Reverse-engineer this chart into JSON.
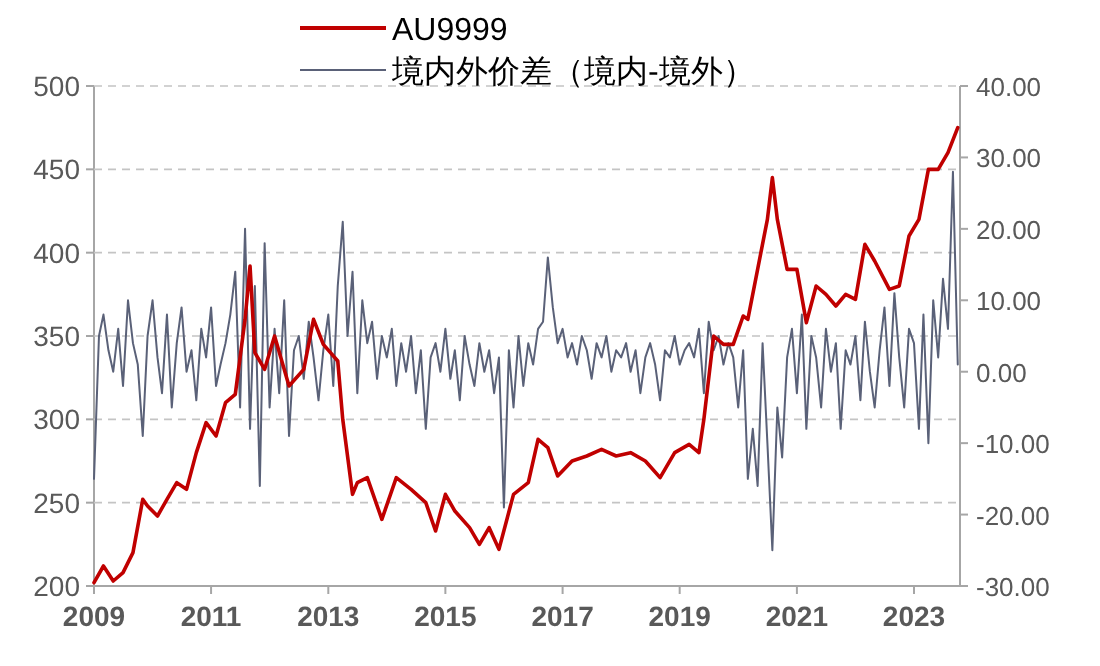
{
  "chart_data": {
    "type": "line",
    "legend": "top",
    "xlim": [
      "2009-01-01",
      "2023-10-15"
    ],
    "xticks": [
      "2009",
      "2011",
      "2013",
      "2015",
      "2017",
      "2019",
      "2021",
      "2023"
    ],
    "ylim": [
      200,
      500
    ],
    "yticks": [
      200,
      250,
      300,
      350,
      400,
      450,
      500
    ],
    "y2lim": [
      -30,
      40
    ],
    "y2ticks": [
      {
        "value": -30,
        "label": "-30.00"
      },
      {
        "value": -20,
        "label": "-20.00"
      },
      {
        "value": -10,
        "label": "-10.00"
      },
      {
        "value": 0,
        "label": "0.00"
      },
      {
        "value": 10,
        "label": "10.00"
      },
      {
        "value": 20,
        "label": "20.00"
      },
      {
        "value": 30,
        "label": "30.00"
      },
      {
        "value": 40,
        "label": "40.00"
      }
    ],
    "grid": "y",
    "line_style": "solid",
    "marker": "none",
    "series": [
      {
        "name": "境内外价差（境内-境外）",
        "color": "#5a6178",
        "axis": "y2",
        "x": [
          "2009-01",
          "2009-02",
          "2009-03",
          "2009-04",
          "2009-05",
          "2009-06",
          "2009-07",
          "2009-08",
          "2009-09",
          "2009-10",
          "2009-11",
          "2009-12",
          "2010-01",
          "2010-02",
          "2010-03",
          "2010-04",
          "2010-05",
          "2010-06",
          "2010-07",
          "2010-08",
          "2010-09",
          "2010-10",
          "2010-11",
          "2010-12",
          "2011-01",
          "2011-02",
          "2011-03",
          "2011-04",
          "2011-05",
          "2011-06",
          "2011-07",
          "2011-08",
          "2011-09",
          "2011-10",
          "2011-11",
          "2011-12",
          "2012-01",
          "2012-02",
          "2012-03",
          "2012-04",
          "2012-05",
          "2012-06",
          "2012-07",
          "2012-08",
          "2012-09",
          "2012-10",
          "2012-11",
          "2012-12",
          "2013-01",
          "2013-02",
          "2013-03",
          "2013-04",
          "2013-05",
          "2013-06",
          "2013-07",
          "2013-08",
          "2013-09",
          "2013-10",
          "2013-11",
          "2013-12",
          "2014-01",
          "2014-02",
          "2014-03",
          "2014-04",
          "2014-05",
          "2014-06",
          "2014-07",
          "2014-08",
          "2014-09",
          "2014-10",
          "2014-11",
          "2014-12",
          "2015-01",
          "2015-02",
          "2015-03",
          "2015-04",
          "2015-05",
          "2015-06",
          "2015-07",
          "2015-08",
          "2015-09",
          "2015-10",
          "2015-11",
          "2015-12",
          "2016-01",
          "2016-02",
          "2016-03",
          "2016-04",
          "2016-05",
          "2016-06",
          "2016-07",
          "2016-08",
          "2016-09",
          "2016-10",
          "2016-11",
          "2016-12",
          "2017-01",
          "2017-02",
          "2017-03",
          "2017-04",
          "2017-05",
          "2017-06",
          "2017-07",
          "2017-08",
          "2017-09",
          "2017-10",
          "2017-11",
          "2017-12",
          "2018-01",
          "2018-02",
          "2018-03",
          "2018-04",
          "2018-05",
          "2018-06",
          "2018-07",
          "2018-08",
          "2018-09",
          "2018-10",
          "2018-11",
          "2018-12",
          "2019-01",
          "2019-02",
          "2019-03",
          "2019-04",
          "2019-05",
          "2019-06",
          "2019-07",
          "2019-08",
          "2019-09",
          "2019-10",
          "2019-11",
          "2019-12",
          "2020-01",
          "2020-02",
          "2020-03",
          "2020-04",
          "2020-05",
          "2020-06",
          "2020-07",
          "2020-08",
          "2020-09",
          "2020-10",
          "2020-11",
          "2020-12",
          "2021-01",
          "2021-02",
          "2021-03",
          "2021-04",
          "2021-05",
          "2021-06",
          "2021-07",
          "2021-08",
          "2021-09",
          "2021-10",
          "2021-11",
          "2021-12",
          "2022-01",
          "2022-02",
          "2022-03",
          "2022-04",
          "2022-05",
          "2022-06",
          "2022-07",
          "2022-08",
          "2022-09",
          "2022-10",
          "2022-11",
          "2022-12",
          "2023-01",
          "2023-02",
          "2023-03",
          "2023-04",
          "2023-05",
          "2023-06",
          "2023-07",
          "2023-08",
          "2023-09",
          "2023-10"
        ],
        "values": [
          -15,
          5,
          8,
          3,
          0,
          6,
          -2,
          10,
          4,
          1,
          -9,
          5,
          10,
          2,
          -3,
          8,
          -5,
          4,
          9,
          0,
          3,
          -4,
          6,
          2,
          9,
          -2,
          1,
          4,
          8,
          14,
          -5,
          20,
          -8,
          12,
          -16,
          18,
          -5,
          6,
          -3,
          10,
          -9,
          3,
          5,
          -1,
          7,
          2,
          -4,
          3,
          8,
          -2,
          12,
          21,
          5,
          14,
          -3,
          10,
          4,
          7,
          -1,
          5,
          2,
          6,
          -2,
          4,
          0,
          5,
          -3,
          3,
          -8,
          2,
          4,
          0,
          6,
          -1,
          3,
          -4,
          5,
          1,
          -2,
          4,
          0,
          3,
          -3,
          2,
          -19,
          3,
          -5,
          5,
          -2,
          4,
          1,
          6,
          7,
          16,
          9,
          4,
          6,
          2,
          4,
          1,
          5,
          3,
          -1,
          4,
          2,
          5,
          0,
          3,
          2,
          4,
          0,
          3,
          -3,
          2,
          4,
          1,
          -4,
          3,
          2,
          5,
          1,
          3,
          4,
          2,
          6,
          -3,
          7,
          3,
          5,
          1,
          4,
          2,
          -5,
          3,
          -15,
          -8,
          -16,
          4,
          -10,
          -25,
          -5,
          -12,
          2,
          6,
          -3,
          8,
          -8,
          5,
          2,
          -5,
          6,
          0,
          4,
          -8,
          3,
          1,
          5,
          -4,
          7,
          0,
          -5,
          3,
          9,
          -2,
          11,
          2,
          -5,
          6,
          4,
          -8,
          8,
          -10,
          10,
          2,
          13,
          6,
          28,
          1
        ]
      },
      {
        "name": "AU9999",
        "color": "#c00000",
        "x": [
          "2009-01",
          "2009-03",
          "2009-05",
          "2009-07",
          "2009-09",
          "2009-11",
          "2009-12",
          "2010-02",
          "2010-04",
          "2010-06",
          "2010-08",
          "2010-10",
          "2010-12",
          "2011-02",
          "2011-04",
          "2011-06",
          "2011-08",
          "2011-09",
          "2011-10",
          "2011-12",
          "2012-02",
          "2012-05",
          "2012-08",
          "2012-10",
          "2012-12",
          "2013-03",
          "2013-04",
          "2013-06",
          "2013-07",
          "2013-09",
          "2013-12",
          "2014-03",
          "2014-06",
          "2014-09",
          "2014-11",
          "2015-01",
          "2015-03",
          "2015-06",
          "2015-08",
          "2015-10",
          "2015-12",
          "2016-03",
          "2016-06",
          "2016-08",
          "2016-10",
          "2016-12",
          "2017-03",
          "2017-06",
          "2017-09",
          "2017-12",
          "2018-03",
          "2018-06",
          "2018-09",
          "2018-12",
          "2019-03",
          "2019-05",
          "2019-06",
          "2019-08",
          "2019-10",
          "2019-12",
          "2020-02",
          "2020-03",
          "2020-05",
          "2020-07",
          "2020-08",
          "2020-09",
          "2020-11",
          "2021-01",
          "2021-03",
          "2021-05",
          "2021-07",
          "2021-09",
          "2021-11",
          "2022-01",
          "2022-03",
          "2022-05",
          "2022-08",
          "2022-10",
          "2022-12",
          "2023-02",
          "2023-04",
          "2023-06",
          "2023-08",
          "2023-10"
        ],
        "values": [
          202,
          212,
          203,
          208,
          220,
          252,
          248,
          242,
          252,
          262,
          258,
          280,
          298,
          290,
          310,
          315,
          360,
          392,
          340,
          330,
          350,
          320,
          330,
          360,
          345,
          335,
          300,
          255,
          262,
          265,
          240,
          265,
          258,
          250,
          233,
          255,
          245,
          235,
          225,
          235,
          222,
          255,
          262,
          288,
          283,
          266,
          275,
          278,
          282,
          278,
          280,
          275,
          265,
          280,
          285,
          280,
          300,
          350,
          345,
          345,
          362,
          360,
          390,
          420,
          445,
          420,
          390,
          390,
          358,
          380,
          375,
          368,
          375,
          372,
          405,
          395,
          378,
          380,
          410,
          420,
          450,
          450,
          460,
          475
        ]
      }
    ]
  }
}
